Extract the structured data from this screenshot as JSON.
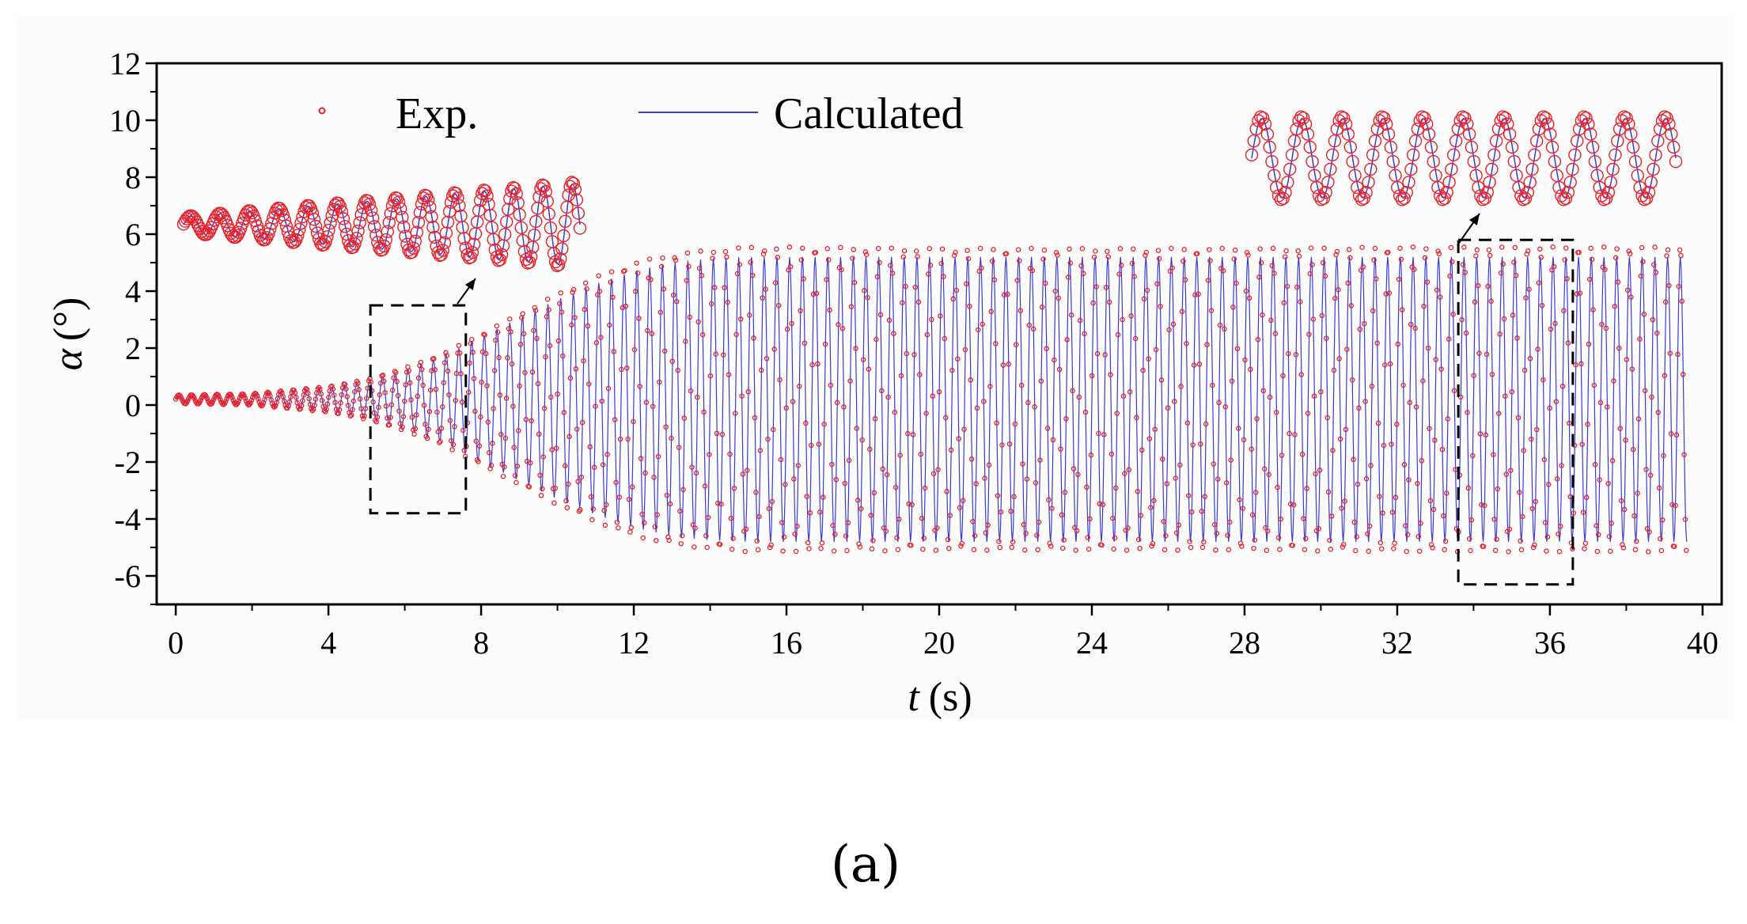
{
  "chart_data": {
    "type": "line",
    "title": "",
    "xlabel": "t (s)",
    "xlabel_var": "t",
    "xlabel_unit": "(s)",
    "ylabel": "α (°)",
    "ylabel_var": "α",
    "ylabel_unit": "(°)",
    "xlim": [
      -0.5,
      40.5
    ],
    "ylim": [
      -7,
      12
    ],
    "xticks": [
      0,
      4,
      8,
      12,
      16,
      20,
      24,
      28,
      32,
      36,
      40
    ],
    "yticks": [
      -6,
      -4,
      -2,
      0,
      2,
      4,
      6,
      8,
      10,
      12
    ],
    "frequency_hz": 3.0,
    "series": [
      {
        "name": "Exp.",
        "style": "markers",
        "color": "#e8202a",
        "offset": 0.2,
        "envelope_t": [
          0,
          2,
          4,
          5,
          6,
          7,
          8,
          9,
          10,
          11,
          12,
          13,
          14,
          15,
          16,
          20,
          24,
          28,
          32,
          36,
          39.5
        ],
        "envelope_amp": [
          0.15,
          0.2,
          0.45,
          0.7,
          1.1,
          1.6,
          2.3,
          3.0,
          3.7,
          4.3,
          4.8,
          5.1,
          5.25,
          5.35,
          5.35,
          5.3,
          5.3,
          5.3,
          5.35,
          5.35,
          5.35
        ]
      },
      {
        "name": "Calculated",
        "style": "line",
        "color": "#3a3ad8",
        "offset": 0.2,
        "envelope_t": [
          0,
          2,
          4,
          5,
          6,
          7,
          8,
          9,
          10,
          11,
          12,
          13,
          14,
          15,
          16,
          20,
          24,
          28,
          32,
          36,
          39.5
        ],
        "envelope_amp": [
          0.12,
          0.18,
          0.4,
          0.65,
          1.0,
          1.5,
          2.2,
          2.85,
          3.5,
          4.05,
          4.5,
          4.8,
          4.95,
          5.0,
          5.0,
          5.0,
          5.0,
          5.0,
          5.0,
          5.0,
          5.0
        ]
      }
    ],
    "annotations": [
      {
        "kind": "zoom-box",
        "t_range": [
          5.1,
          7.6
        ],
        "y_range": [
          -3.8,
          3.5
        ],
        "inset": "left"
      },
      {
        "kind": "zoom-box",
        "t_range": [
          33.6,
          36.6
        ],
        "y_range": [
          -6.3,
          5.8
        ],
        "inset": "right"
      }
    ],
    "legend_position": "top-left"
  },
  "caption": "(a)",
  "colors": {
    "exp": "#e8202a",
    "calc": "#3a3ad8",
    "axis": "#000000",
    "background": "#ffffff",
    "plot_background": "#fefefe"
  }
}
